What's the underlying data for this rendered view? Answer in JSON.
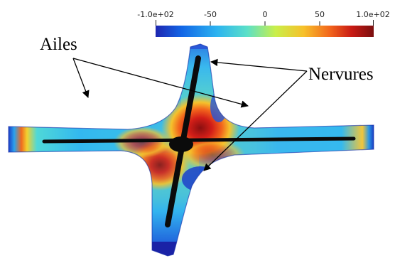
{
  "colorbar": {
    "ticks": [
      "-1.0e+02",
      "-50",
      "0",
      "50",
      "1.0e+02"
    ],
    "range": [
      -100,
      100
    ],
    "colormap": [
      "#1e26b0",
      "#1266e6",
      "#2cb3f0",
      "#5be0c8",
      "#c9ef4a",
      "#f7c02a",
      "#f2651c",
      "#c81a14",
      "#7a0f0f"
    ]
  },
  "labels": {
    "wings": "Ailes",
    "ribs": "Nervures"
  },
  "colors": {
    "background": "#ffffff",
    "rib": "#0b0b0b",
    "arrow": "#000000"
  }
}
